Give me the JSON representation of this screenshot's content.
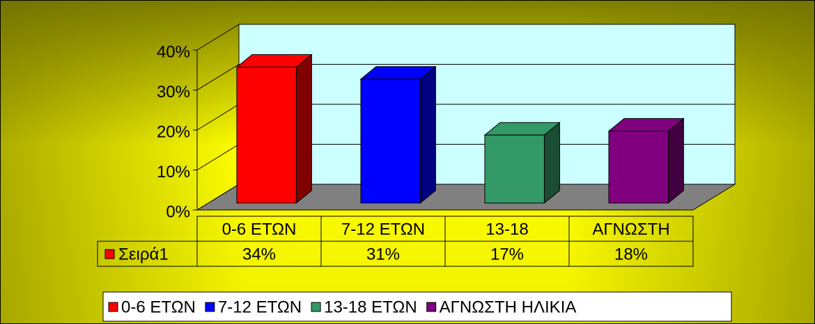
{
  "chart_data": {
    "type": "bar3d",
    "categories": [
      "0-6 ΕΤΩΝ",
      "7-12 ΕΤΩΝ",
      "13-18",
      "ΑΓΝΩΣΤΗ"
    ],
    "series_name": "Σειρά1",
    "values": [
      34,
      31,
      17,
      18
    ],
    "value_labels": [
      "34%",
      "31%",
      "17%",
      "18%"
    ],
    "colors": [
      "#ff0000",
      "#0000ff",
      "#339966",
      "#800080"
    ],
    "legend": [
      "0-6 ΕΤΩΝ",
      "7-12 ΕΤΩΝ",
      "13-18 ΕΤΩΝ",
      "ΑΓΝΩΣΤΗ ΗΛΙΚΙΑ"
    ],
    "ylim": [
      0,
      40
    ],
    "yticks": [
      {
        "value": 0,
        "label": "0%"
      },
      {
        "value": 10,
        "label": "10%"
      },
      {
        "value": 20,
        "label": "20%"
      },
      {
        "value": 30,
        "label": "30%"
      },
      {
        "value": 40,
        "label": "40%"
      }
    ],
    "grid": true
  }
}
